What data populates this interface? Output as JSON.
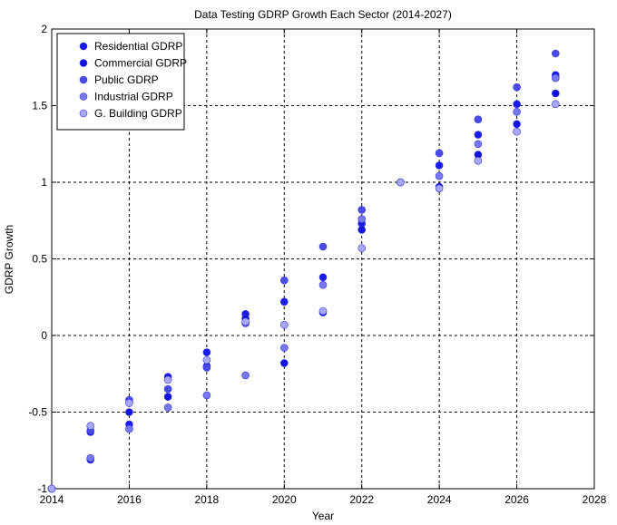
{
  "chart_data": {
    "type": "scatter",
    "title": "Data Testing GDRP Growth Each Sector (2014-2027)",
    "xlabel": "Year",
    "ylabel": "GDRP Growth",
    "xlim": [
      2014,
      2028
    ],
    "ylim": [
      -1,
      2
    ],
    "xticks": [
      "2014",
      "2016",
      "2018",
      "2020",
      "2022",
      "2024",
      "2026",
      "2028"
    ],
    "yticks": [
      "-1",
      "-0.5",
      "0",
      "0.5",
      "1",
      "1.5",
      "2"
    ],
    "grid": true,
    "legend_position": "top-left",
    "series": [
      {
        "name": "Residential GDRP",
        "color": "#1a1aef",
        "points": [
          [
            2014,
            -1.0
          ],
          [
            2015,
            -0.63
          ],
          [
            2016,
            -0.58
          ],
          [
            2017,
            -0.27
          ],
          [
            2018,
            -0.11
          ],
          [
            2019,
            0.14
          ],
          [
            2020,
            0.22
          ],
          [
            2021,
            0.38
          ],
          [
            2022,
            0.73
          ],
          [
            2023,
            1.0
          ],
          [
            2024,
            1.11
          ],
          [
            2025,
            1.31
          ],
          [
            2026,
            1.51
          ],
          [
            2027,
            1.7
          ]
        ]
      },
      {
        "name": "Commercial GDRP",
        "color": "#1010e0",
        "points": [
          [
            2014,
            -1.0
          ],
          [
            2015,
            -0.81
          ],
          [
            2016,
            -0.5
          ],
          [
            2017,
            -0.4
          ],
          [
            2018,
            -0.2
          ],
          [
            2019,
            0.11
          ],
          [
            2020,
            -0.18
          ],
          [
            2021,
            0.15
          ],
          [
            2022,
            0.69
          ],
          [
            2023,
            1.0
          ],
          [
            2024,
            0.97
          ],
          [
            2025,
            1.18
          ],
          [
            2026,
            1.38
          ],
          [
            2027,
            1.58
          ]
        ]
      },
      {
        "name": "Public GDRP",
        "color": "#4a4ae8",
        "points": [
          [
            2014,
            -1.0
          ],
          [
            2015,
            -0.62
          ],
          [
            2016,
            -0.42
          ],
          [
            2017,
            -0.35
          ],
          [
            2018,
            -0.21
          ],
          [
            2019,
            0.08
          ],
          [
            2020,
            0.36
          ],
          [
            2021,
            0.58
          ],
          [
            2022,
            0.82
          ],
          [
            2023,
            1.0
          ],
          [
            2024,
            1.19
          ],
          [
            2025,
            1.41
          ],
          [
            2026,
            1.62
          ],
          [
            2027,
            1.84
          ]
        ]
      },
      {
        "name": "Industrial GDRP",
        "color": "#7777ee",
        "points": [
          [
            2014,
            -1.0
          ],
          [
            2015,
            -0.8
          ],
          [
            2016,
            -0.61
          ],
          [
            2017,
            -0.47
          ],
          [
            2018,
            -0.39
          ],
          [
            2019,
            -0.26
          ],
          [
            2020,
            -0.08
          ],
          [
            2021,
            0.33
          ],
          [
            2022,
            0.76
          ],
          [
            2023,
            1.0
          ],
          [
            2024,
            1.04
          ],
          [
            2025,
            1.25
          ],
          [
            2026,
            1.46
          ],
          [
            2027,
            1.68
          ]
        ]
      },
      {
        "name": "G. Building GDRP",
        "color": "#a8a8f6",
        "points": [
          [
            2014,
            -1.0
          ],
          [
            2015,
            -0.59
          ],
          [
            2016,
            -0.44
          ],
          [
            2017,
            -0.29
          ],
          [
            2018,
            -0.16
          ],
          [
            2019,
            0.09
          ],
          [
            2020,
            0.07
          ],
          [
            2021,
            0.16
          ],
          [
            2022,
            0.57
          ],
          [
            2023,
            1.0
          ],
          [
            2024,
            0.96
          ],
          [
            2025,
            1.14
          ],
          [
            2026,
            1.33
          ],
          [
            2027,
            1.51
          ]
        ]
      }
    ]
  }
}
